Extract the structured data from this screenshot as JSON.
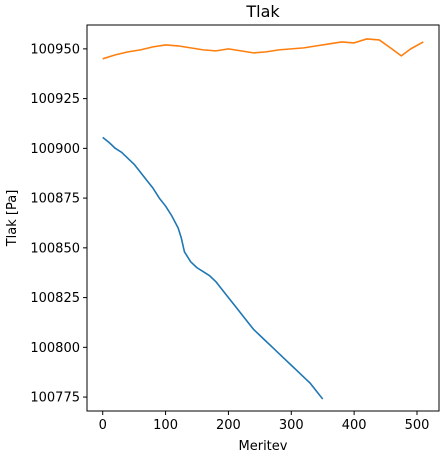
{
  "chart_data": {
    "type": "line",
    "title": "Tlak",
    "xlabel": "Meritev",
    "ylabel": "Tlak [Pa]",
    "xlim": [
      -25,
      535
    ],
    "ylim": [
      100768,
      100962
    ],
    "xticks": [
      0,
      100,
      200,
      300,
      400,
      500
    ],
    "yticks": [
      100775,
      100800,
      100825,
      100850,
      100875,
      100900,
      100925,
      100950
    ],
    "grid": false,
    "legend": "none",
    "series": [
      {
        "color": "#1f77b4",
        "points": [
          [
            0,
            100905.5
          ],
          [
            10,
            100903
          ],
          [
            20,
            100900
          ],
          [
            30,
            100898
          ],
          [
            40,
            100895
          ],
          [
            50,
            100892
          ],
          [
            60,
            100888
          ],
          [
            70,
            100884
          ],
          [
            80,
            100880
          ],
          [
            90,
            100875
          ],
          [
            100,
            100871
          ],
          [
            110,
            100866
          ],
          [
            120,
            100860
          ],
          [
            125,
            100855
          ],
          [
            130,
            100848
          ],
          [
            140,
            100843
          ],
          [
            150,
            100840
          ],
          [
            160,
            100838
          ],
          [
            170,
            100836
          ],
          [
            180,
            100833
          ],
          [
            190,
            100829
          ],
          [
            200,
            100825
          ],
          [
            210,
            100821
          ],
          [
            220,
            100817
          ],
          [
            230,
            100813
          ],
          [
            240,
            100809
          ],
          [
            250,
            100806
          ],
          [
            260,
            100803
          ],
          [
            270,
            100800
          ],
          [
            280,
            100797
          ],
          [
            290,
            100794
          ],
          [
            300,
            100791
          ],
          [
            310,
            100788
          ],
          [
            320,
            100785
          ],
          [
            330,
            100782
          ],
          [
            340,
            100778
          ],
          [
            350,
            100774
          ]
        ]
      },
      {
        "color": "#ff7f0e",
        "points": [
          [
            0,
            100945
          ],
          [
            20,
            100947
          ],
          [
            40,
            100948.5
          ],
          [
            60,
            100949.5
          ],
          [
            80,
            100951
          ],
          [
            100,
            100952
          ],
          [
            120,
            100951.5
          ],
          [
            140,
            100950.5
          ],
          [
            160,
            100949.5
          ],
          [
            180,
            100949
          ],
          [
            200,
            100950
          ],
          [
            220,
            100949
          ],
          [
            240,
            100948
          ],
          [
            260,
            100948.5
          ],
          [
            280,
            100949.5
          ],
          [
            300,
            100950
          ],
          [
            320,
            100950.5
          ],
          [
            340,
            100951.5
          ],
          [
            360,
            100952.5
          ],
          [
            380,
            100953.5
          ],
          [
            400,
            100953
          ],
          [
            420,
            100955
          ],
          [
            440,
            100954.5
          ],
          [
            460,
            100950
          ],
          [
            475,
            100946.5
          ],
          [
            490,
            100950
          ],
          [
            510,
            100953.5
          ]
        ]
      }
    ]
  }
}
